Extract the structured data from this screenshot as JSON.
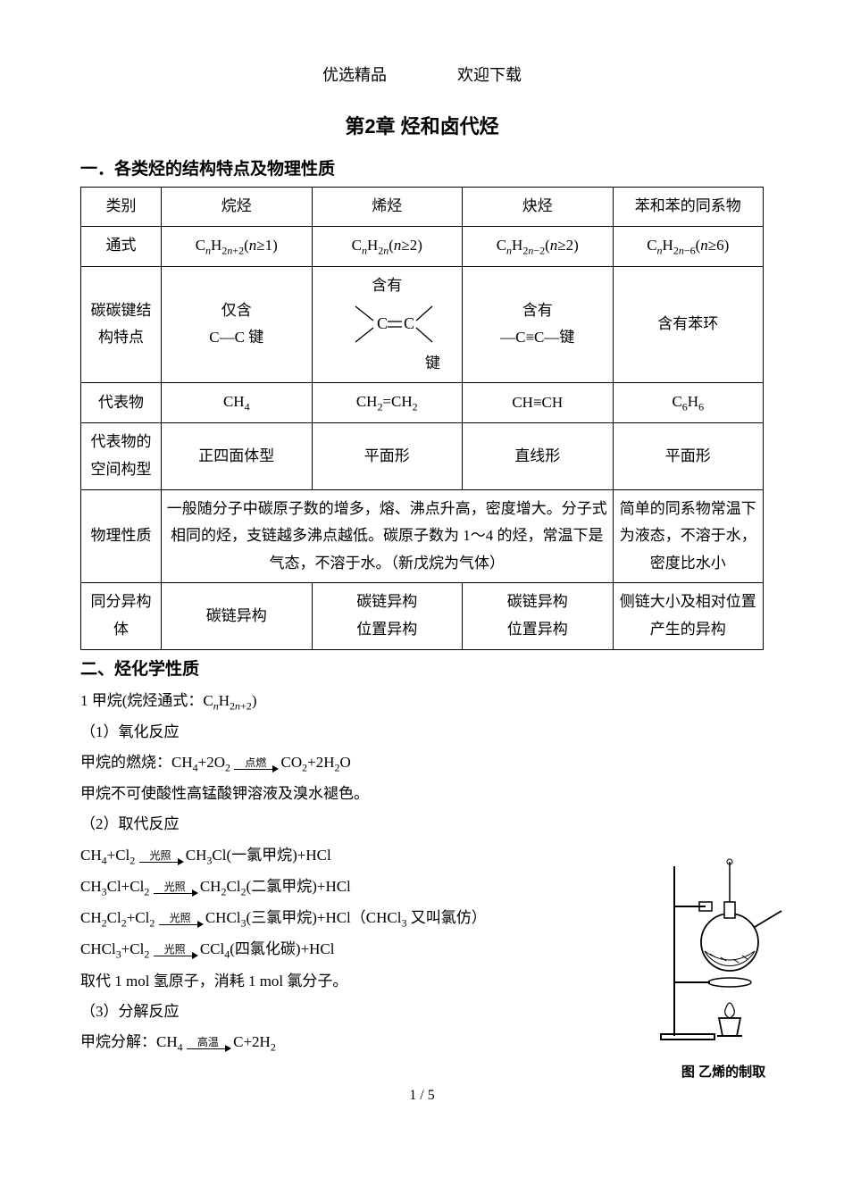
{
  "header": {
    "left": "优选精品",
    "right": "欢迎下载"
  },
  "chapter_title": "第2章 烃和卤代烃",
  "section1_title": "一．各类烃的结构特点及物理性质",
  "section2_title": "二、烃化学性质",
  "table": {
    "rows": {
      "r0": {
        "h": "类别",
        "c1": "烷烃",
        "c2": "烯烃",
        "c3": "炔烃",
        "c4": "苯和苯的同系物"
      },
      "r1": {
        "h": "通式",
        "c1": "C<span class='sub ital'>n</span>H<span class='sub'>2<span class='ital'>n</span>+2</span>(<span class='ital'>n</span>≥1)",
        "c2": "C<span class='sub ital'>n</span>H<span class='sub'>2<span class='ital'>n</span></span>(<span class='ital'>n</span>≥2)",
        "c3": "C<span class='sub ital'>n</span>H<span class='sub'>2<span class='ital'>n</span>−2</span>(<span class='ital'>n</span>≥2)",
        "c4": "C<span class='sub ital'>n</span>H<span class='sub'>2<span class='ital'>n</span>−6</span>(<span class='ital'>n</span>≥6)"
      },
      "r2": {
        "h": "碳碳键结构特点",
        "c1_l1": "仅含",
        "c1_l2": "C—C 键",
        "c2_top": "含有",
        "c2_bottom": "键",
        "c3_l1": "含有",
        "c3_l2": "—C≡C—键",
        "c4": "含有苯环"
      },
      "r3": {
        "h": "代表物",
        "c1": "CH<span class='sub'>4</span>",
        "c2": "CH<span class='sub'>2</span>=CH<span class='sub'>2</span>",
        "c3": "CH≡CH",
        "c4": "C<span class='sub'>6</span>H<span class='sub'>6</span>"
      },
      "r4": {
        "h": "代表物的空间构型",
        "c1": "正四面体型",
        "c2": "平面形",
        "c3": "直线形",
        "c4": "平面形"
      },
      "r5": {
        "h": "物理性质",
        "merged": "一般随分子中碳原子数的增多，熔、沸点升高，密度增大。分子式相同的烃，支链越多沸点越低。碳原子数为 1～4 的烃，常温下是气态，不溶于水。（新戊烷为气体）",
        "c4": "简单的同系物常温下为液态，不溶于水，密度比水小"
      },
      "r6": {
        "h": "同分异构体",
        "c1": "碳链异构",
        "c2_l1": "碳链异构",
        "c2_l2": "位置异构",
        "c3_l1": "碳链异构",
        "c3_l2": "位置异构",
        "c4": "侧链大小及相对位置产生的异构"
      }
    }
  },
  "chem": {
    "line1_a": "1 甲烷(烷烃通式：C",
    "line1_b": "H",
    "line1_c": ")",
    "line2": "（1）氧化反应",
    "line3_a": "甲烷的燃烧：CH",
    "line3_b": "+2O",
    "line3_cond": "点燃",
    "line3_c": " CO",
    "line3_d": "+2H",
    "line3_e": "O",
    "line4": "甲烷不可使酸性高锰酸钾溶液及溴水褪色。",
    "line5": "（2）取代反应",
    "line6_a": "CH",
    "line6_b": "+Cl",
    "line6_cond": "光照",
    "line6_c": "CH",
    "line6_d": "Cl(一氯甲烷)+HCl",
    "line7_a": "CH",
    "line7_b": "Cl+Cl",
    "line7_cond": "光照",
    "line7_c": "CH",
    "line7_d": "Cl",
    "line7_e": "(二氯甲烷)+HCl",
    "line8_a": "CH",
    "line8_b": "Cl",
    "line8_c": "+Cl",
    "line8_cond": "光照",
    "line8_d": "CHCl",
    "line8_e": "(三氯甲烷)+HCl（CHCl",
    "line8_f": " 又叫氯仿）",
    "line9_a": "CHCl",
    "line9_b": "+Cl",
    "line9_cond": "光照",
    "line9_c": "CCl",
    "line9_d": "(四氯化碳)+HCl",
    "line10": "取代 1 mol 氢原子，消耗 1 mol 氯分子。",
    "line11": "（3）分解反应",
    "line12_a": "甲烷分解：CH",
    "line12_cond": "高温",
    "line12_b": "C+2H"
  },
  "apparatus_caption": "图 乙烯的制取",
  "page_num": "1 / 5"
}
